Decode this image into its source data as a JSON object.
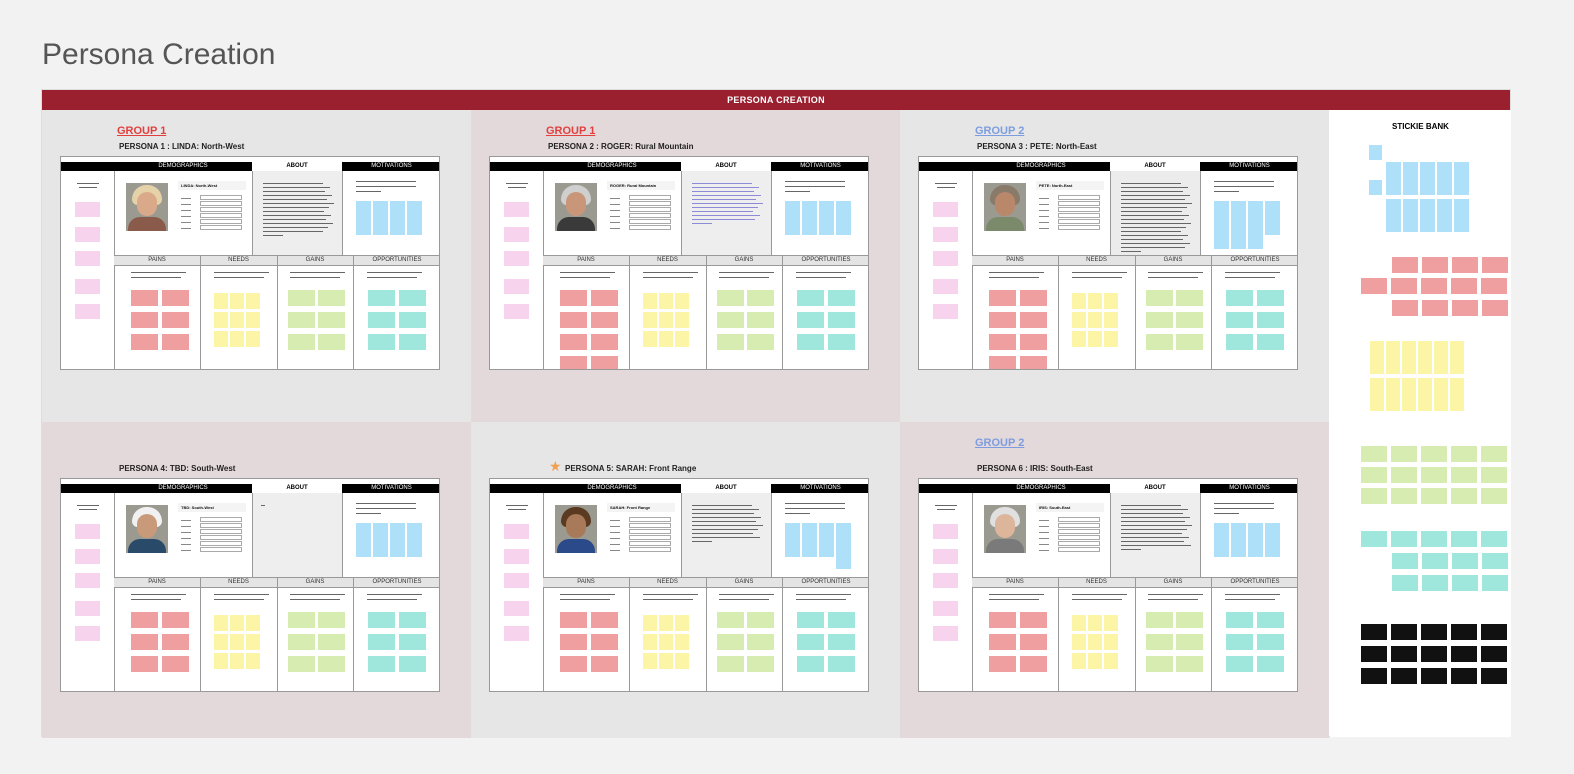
{
  "page_title": "Persona Creation",
  "banner": "PERSONA CREATION",
  "stickie_bank_title": "STICKIE BANK",
  "canvas_headers": {
    "demographics": "DEMOGRAPHICS",
    "about": "ABOUT",
    "motivations": "MOTIVATIONS",
    "pains": "PAINS",
    "needs": "NEEDS",
    "gains": "GAINS",
    "opportunities": "OPPORTUNITIES"
  },
  "personas": [
    {
      "group": "GROUP 1",
      "group_color": "#e0413f",
      "label": "PERSONA 1 : LINDA: North-West",
      "name_tag": "LINDA: North-West",
      "starred": false
    },
    {
      "group": "GROUP 1",
      "group_color": "#e0413f",
      "label": "PERSONA 2 : ROGER: Rural Mountain",
      "name_tag": "ROGER: Rural Mountain",
      "starred": false
    },
    {
      "group": "GROUP 2",
      "group_color": "#7d9de0",
      "label": "PERSONA 3 : PETE: North-East",
      "name_tag": "PETE: North-East",
      "starred": false
    },
    {
      "group": "",
      "group_color": "",
      "label": "PERSONA 4: TBD: South-West",
      "name_tag": "TBD: South-West",
      "starred": false
    },
    {
      "group": "",
      "group_color": "",
      "label": "PERSONA 5: SARAH: Front Range",
      "name_tag": "SARAH: Front Range",
      "starred": true
    },
    {
      "group": "GROUP 2",
      "group_color": "#7d9de0",
      "label": "PERSONA 6 : IRIS: South-East",
      "name_tag": "IRIS: South-East",
      "starred": false
    }
  ],
  "colors": {
    "banner": "#9a2030",
    "group1": "#e0413f",
    "group2": "#7d9de0",
    "star": "#f0a050"
  }
}
